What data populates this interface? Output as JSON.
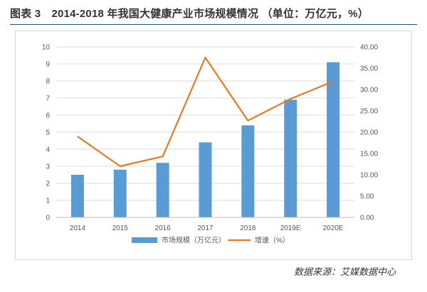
{
  "header": {
    "title": "图表 3　2014-2018 年我国大健康产业市场规模情况 （单位：万亿元，%）"
  },
  "footer": {
    "source": "数据来源：艾媒数据中心"
  },
  "colors": {
    "bar": "#5b9bd5",
    "line": "#e07b24",
    "grid": "#d9d9d9",
    "title_rule": "#1f4e8c"
  },
  "chart_data": {
    "type": "bar",
    "title": "",
    "xlabel": "",
    "ylabel": "",
    "categories": [
      "2014",
      "2015",
      "2016",
      "2017",
      "2018",
      "2019E",
      "2020E"
    ],
    "series": [
      {
        "name": "市场规模（万亿元）",
        "type": "bar",
        "axis": "left",
        "values": [
          2.5,
          2.8,
          3.2,
          4.4,
          5.4,
          6.9,
          9.1
        ]
      },
      {
        "name": "增速（%）",
        "type": "line",
        "axis": "right",
        "values": [
          19.0,
          12.0,
          14.3,
          37.5,
          22.7,
          27.8,
          31.9
        ]
      }
    ],
    "ylim": [
      0,
      10
    ],
    "y_ticks": [
      "0",
      "1",
      "2",
      "3",
      "4",
      "5",
      "6",
      "7",
      "8",
      "9",
      "10"
    ],
    "y2lim": [
      0,
      40
    ],
    "y2_ticks": [
      "0.00",
      "5.00",
      "10.00",
      "15.00",
      "20.00",
      "25.00",
      "30.00",
      "35.00",
      "40.00"
    ],
    "grid": true,
    "legend_position": "bottom"
  }
}
